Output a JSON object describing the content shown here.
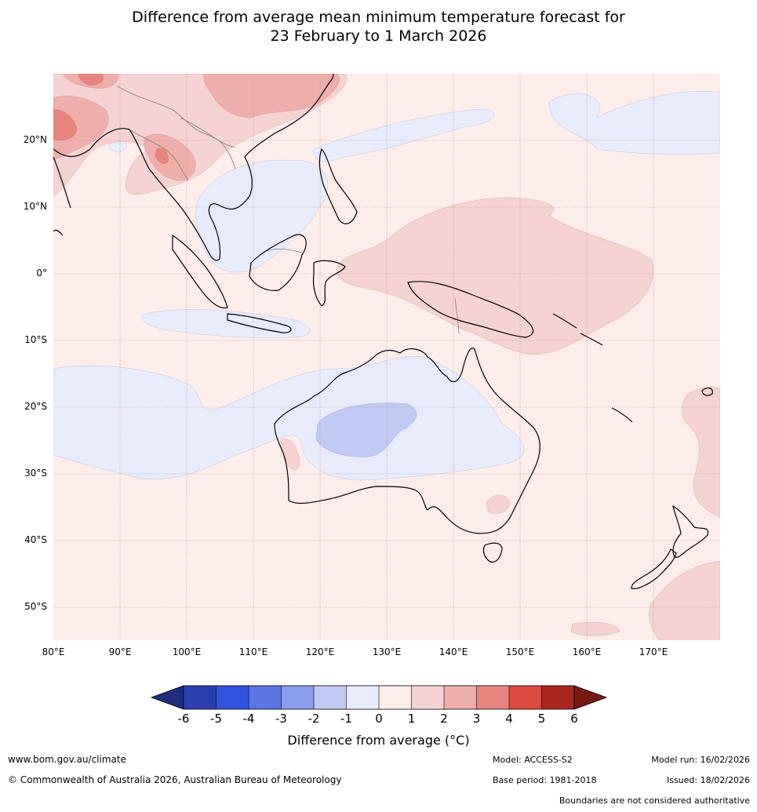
{
  "title_line1": "Difference from average mean minimum temperature forecast for",
  "title_line2": "23 February to 1 March 2026",
  "latitudes": [
    "20°N",
    "10°N",
    "0°",
    "10°S",
    "20°S",
    "30°S",
    "40°S",
    "50°S"
  ],
  "longitudes": [
    "80°E",
    "90°E",
    "100°E",
    "110°E",
    "120°E",
    "130°E",
    "140°E",
    "150°E",
    "160°E",
    "170°E"
  ],
  "legend": {
    "ticks": [
      "-6",
      "-5",
      "-4",
      "-3",
      "-2",
      "-1",
      "0",
      "1",
      "2",
      "3",
      "4",
      "5",
      "6"
    ],
    "colors": [
      "#1f2d7a",
      "#2a3eb1",
      "#3253e0",
      "#5a74e4",
      "#8a9cec",
      "#c2c9f3",
      "#e8ebfb",
      "#fcecea",
      "#f5d3d2",
      "#eeafab",
      "#e8857f",
      "#da4a3f",
      "#a8281f",
      "#761a14"
    ],
    "title": "Difference from average (°C)"
  },
  "footer": {
    "website": "www.bom.gov.au/climate",
    "copyright": "© Commonwealth of Australia 2026, Australian Bureau of Meteorology",
    "model": "Model: ACCESS-S2",
    "base_period": "Base period: 1981-2018",
    "model_run": "Model run: 16/02/2026",
    "issued": "Issued: 18/02/2026",
    "disclaimer": "Boundaries are not considered authoritative"
  }
}
